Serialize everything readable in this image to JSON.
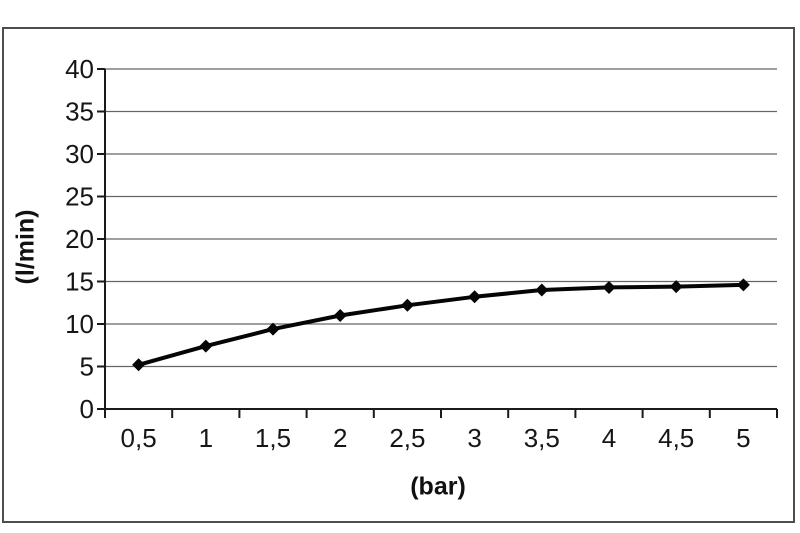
{
  "chart_data": {
    "type": "line",
    "title": "",
    "xlabel": "(bar)",
    "ylabel": "(l/min)",
    "categories": [
      "0,5",
      "1",
      "1,5",
      "2",
      "2,5",
      "3",
      "3,5",
      "4",
      "4,5",
      "5"
    ],
    "categories_numeric": [
      0.5,
      1,
      1.5,
      2,
      2.5,
      3,
      3.5,
      4,
      4.5,
      5
    ],
    "values": [
      5.2,
      7.4,
      9.4,
      11.0,
      12.2,
      13.2,
      14.0,
      14.3,
      14.4,
      14.6
    ],
    "yticks": [
      0,
      5,
      10,
      15,
      20,
      25,
      30,
      35,
      40
    ],
    "ylim": [
      0,
      40
    ],
    "grid": true,
    "legend": false,
    "marker": "diamond",
    "series_color": "#050505",
    "grid_color": "#666666",
    "axis_color": "#1a1a1a",
    "text_color": "#161616",
    "frame_color": "#4d4d4d",
    "background": "#ffffff"
  }
}
